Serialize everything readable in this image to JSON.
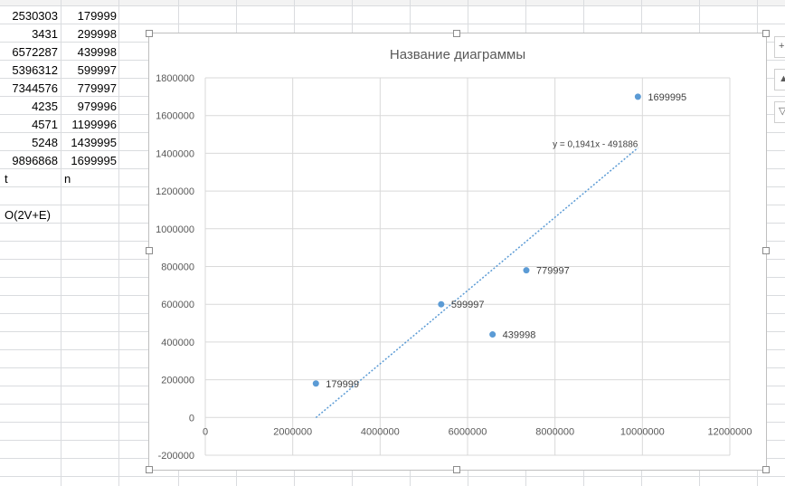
{
  "sheet": {
    "rows": [
      {
        "a": "2530303",
        "b": "179999"
      },
      {
        "a": "3431",
        "b": "299998"
      },
      {
        "a": "6572287",
        "b": "439998"
      },
      {
        "a": "5396312",
        "b": "599997"
      },
      {
        "a": "7344576",
        "b": "779997"
      },
      {
        "a": "4235",
        "b": "979996"
      },
      {
        "a": "4571",
        "b": "1199996"
      },
      {
        "a": "5248",
        "b": "1439995"
      },
      {
        "a": "9896868",
        "b": "1699995"
      }
    ],
    "label_t": "t",
    "label_n": "n",
    "complexity": "O(2V+E)"
  },
  "side_buttons": [
    {
      "icon": "plus-icon",
      "glyph": "+"
    },
    {
      "icon": "brush-icon",
      "glyph": "▲"
    },
    {
      "icon": "filter-icon",
      "glyph": "▽"
    }
  ],
  "chart_data": {
    "type": "scatter",
    "title": "Название диаграммы",
    "xlim": [
      0,
      12000000
    ],
    "ylim": [
      -200000,
      1800000
    ],
    "xticks": [
      0,
      2000000,
      4000000,
      6000000,
      8000000,
      10000000,
      12000000
    ],
    "yticks": [
      -200000,
      0,
      200000,
      400000,
      600000,
      800000,
      1000000,
      1200000,
      1400000,
      1600000,
      1800000
    ],
    "grid": true,
    "points": [
      {
        "x": 2530303,
        "y": 179999,
        "label": "179999"
      },
      {
        "x": 5396312,
        "y": 599997,
        "label": "599997"
      },
      {
        "x": 6572287,
        "y": 439998,
        "label": "439998"
      },
      {
        "x": 7344576,
        "y": 779997,
        "label": "779997"
      },
      {
        "x": 9896868,
        "y": 1699995,
        "label": "1699995"
      }
    ],
    "trendline": {
      "slope": 0.1941,
      "intercept": -491886,
      "x_from": 2530303,
      "x_to": 9896868,
      "equation": "y = 0,1941x - 491886"
    },
    "marker_color": "#5b9bd5",
    "grid_color": "#d9d9d9",
    "text_color": "#595959"
  }
}
